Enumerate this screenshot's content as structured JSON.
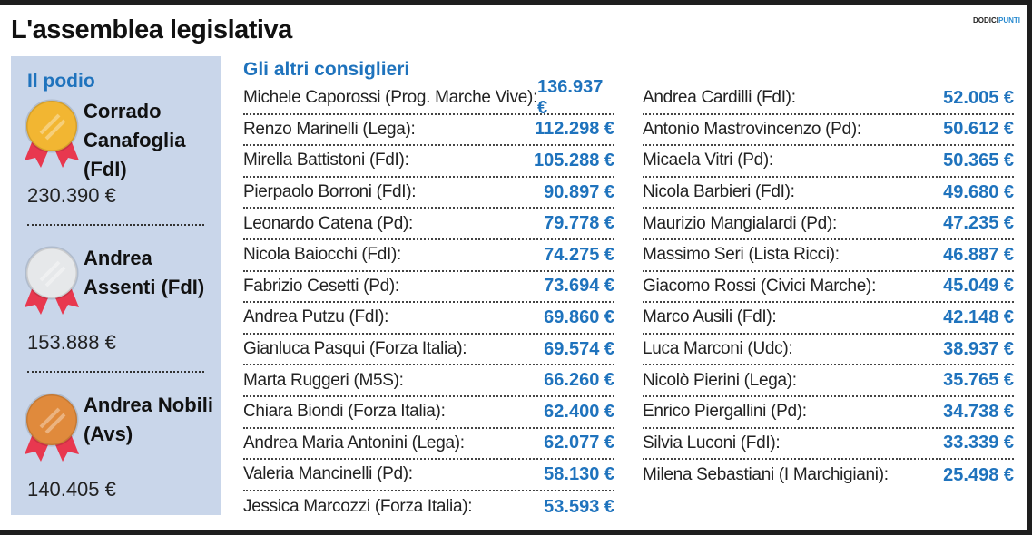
{
  "title": "L'assemblea legislativa",
  "brand": {
    "a": "DODICI",
    "b": "PUNTI"
  },
  "podio": {
    "heading": "Il podio",
    "winners": [
      {
        "name": "Corrado Canafoglia (FdI)",
        "value": "230.390 €",
        "medal": "gold"
      },
      {
        "name": "Andrea Assenti (FdI)",
        "value": "153.888 €",
        "medal": "silver"
      },
      {
        "name": "Andrea Nobili (Avs)",
        "value": "140.405 €",
        "medal": "bronze"
      }
    ]
  },
  "others": {
    "heading": "Gli altri consiglieri",
    "left": [
      [
        "Michele Caporossi (Prog. Marche Vive):",
        "136.937 €"
      ],
      [
        "Renzo Marinelli (Lega):",
        "112.298 €"
      ],
      [
        "Mirella Battistoni (FdI):",
        "105.288 €"
      ],
      [
        "Pierpaolo Borroni (FdI):",
        "90.897 €"
      ],
      [
        "Leonardo Catena (Pd):",
        "79.778 €"
      ],
      [
        "Nicola Baiocchi (FdI):",
        "74.275 €"
      ],
      [
        "Fabrizio Cesetti (Pd):",
        "73.694 €"
      ],
      [
        "Andrea Putzu (FdI):",
        "69.860 €"
      ],
      [
        "Gianluca Pasqui (Forza Italia):",
        "69.574 €"
      ],
      [
        "Marta Ruggeri (M5S):",
        "66.260 €"
      ],
      [
        "Chiara Biondi (Forza Italia):",
        "62.400 €"
      ],
      [
        "Andrea Maria Antonini (Lega):",
        "62.077 €"
      ],
      [
        "Valeria Mancinelli (Pd):",
        "58.130 €"
      ],
      [
        "Jessica Marcozzi (Forza Italia):",
        "53.593 €"
      ]
    ],
    "right": [
      [
        "Andrea Cardilli (FdI):",
        "52.005 €"
      ],
      [
        "Antonio Mastrovincenzo (Pd):",
        "50.612 €"
      ],
      [
        "Micaela Vitri (Pd):",
        "50.365 €"
      ],
      [
        "Nicola Barbieri (FdI):",
        "49.680 €"
      ],
      [
        "Maurizio Mangialardi (Pd):",
        "47.235 €"
      ],
      [
        "Massimo Seri (Lista Ricci):",
        "46.887 €"
      ],
      [
        "Giacomo Rossi (Civici Marche):",
        "45.049 €"
      ],
      [
        "Marco Ausili (FdI):",
        "42.148 €"
      ],
      [
        "Luca Marconi (Udc):",
        "38.937 €"
      ],
      [
        "Nicolò Pierini (Lega):",
        "35.765 €"
      ],
      [
        "Enrico Piergallini (Pd):",
        "34.738 €"
      ],
      [
        "Silvia Luconi (FdI):",
        "33.339 €"
      ],
      [
        "Milena Sebastiani (I Marchigiani):",
        "25.498 €"
      ]
    ]
  },
  "colors": {
    "accent": "#1f73bd",
    "panel": "#c9d6ea",
    "gold": "#f2b632",
    "silver": "#e6e8ea",
    "bronze": "#e08a3c",
    "ribbon": "#e8384f"
  }
}
